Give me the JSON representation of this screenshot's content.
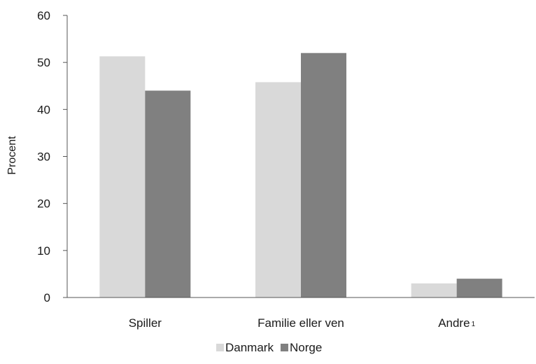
{
  "chart_data": {
    "type": "bar",
    "ylabel": "Procent",
    "ylim": [
      0,
      60
    ],
    "yticks": [
      0,
      10,
      20,
      30,
      40,
      50,
      60
    ],
    "categories": [
      "Spiller",
      "Familie eller ven",
      "Andre"
    ],
    "category_superscripts": [
      "",
      "",
      "1"
    ],
    "series": [
      {
        "name": "Danmark",
        "values": [
          51.3,
          45.8,
          3.0
        ],
        "color": "#d9d9d9"
      },
      {
        "name": "Norge",
        "values": [
          44.0,
          52.0,
          4.0
        ],
        "color": "#808080"
      }
    ],
    "legend_position": "bottom",
    "grid": false
  }
}
